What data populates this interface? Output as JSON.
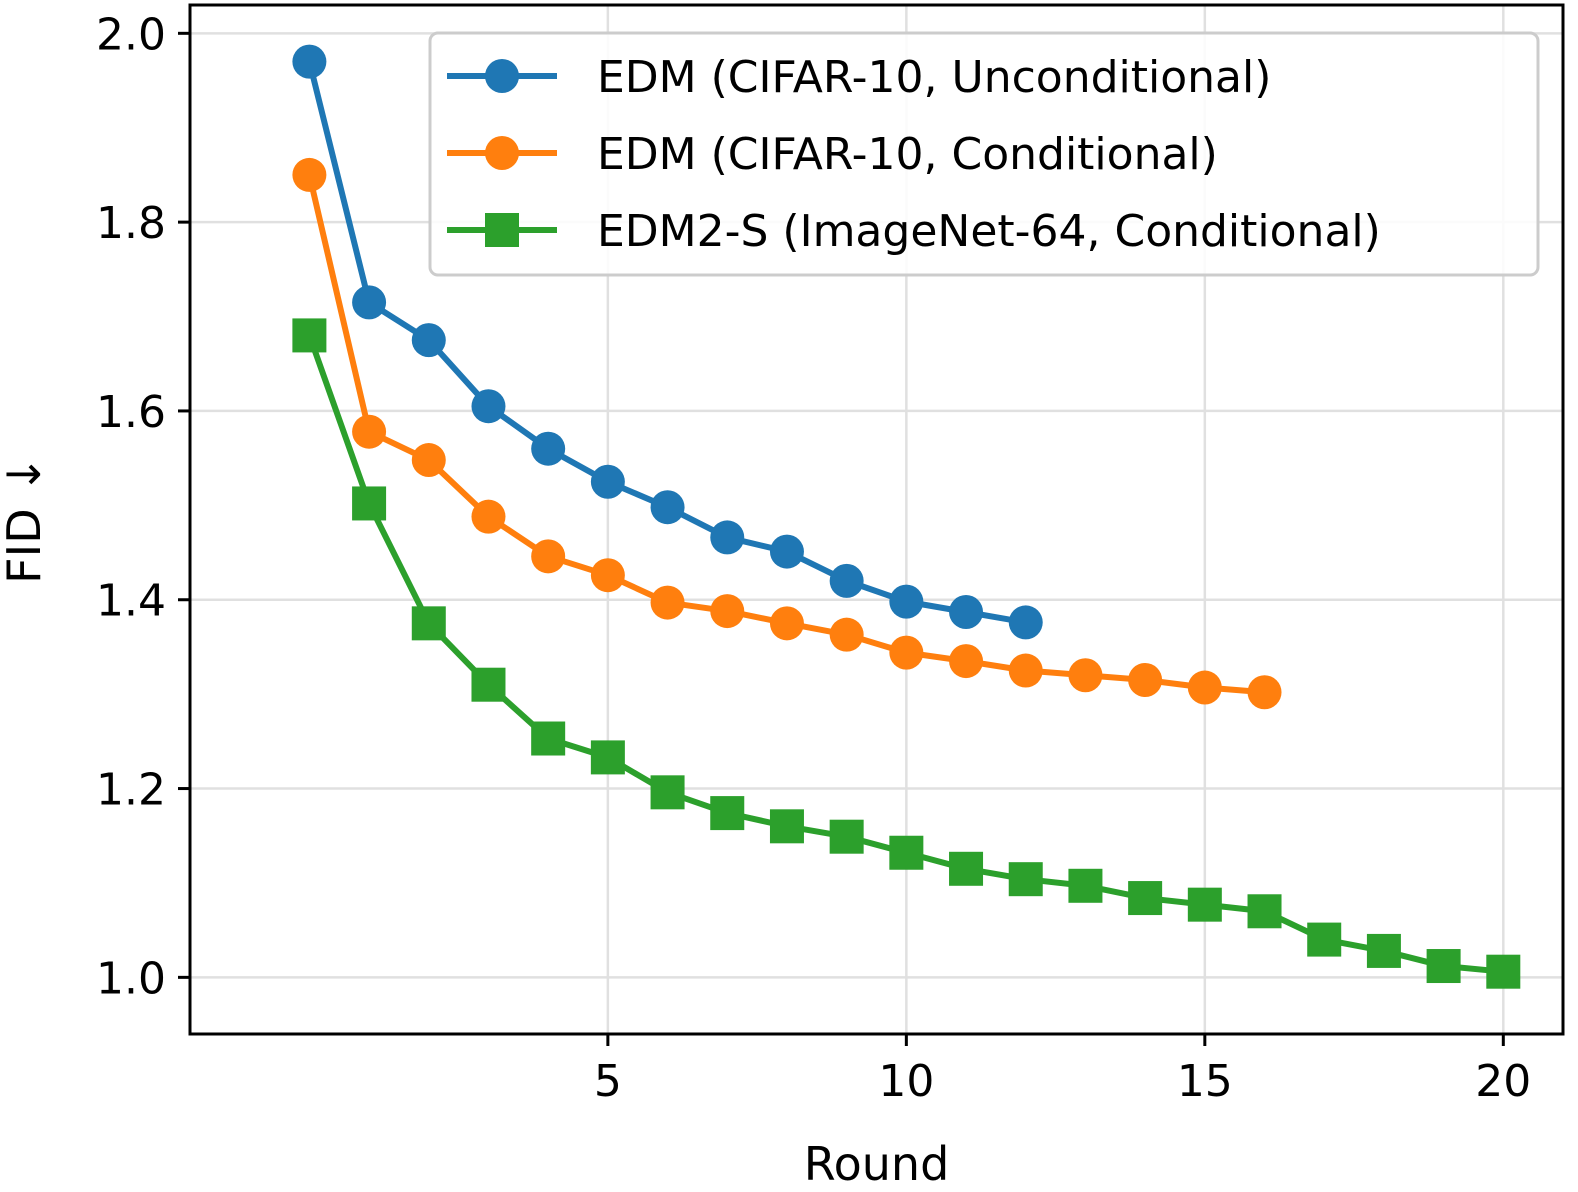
{
  "chart_data": {
    "type": "line",
    "title": "",
    "xlabel": "Round",
    "ylabel": "FID ↓",
    "xlim": [
      -2,
      21
    ],
    "ylim": [
      0.94,
      2.03
    ],
    "xticks": [
      5,
      10,
      15,
      20
    ],
    "yticks": [
      1.0,
      1.2,
      1.4,
      1.6,
      1.8,
      2.0
    ],
    "xtick_labels": [
      "5",
      "10",
      "15",
      "20"
    ],
    "ytick_labels": [
      "1.0",
      "1.2",
      "1.4",
      "1.6",
      "1.8",
      "2.0"
    ],
    "grid": true,
    "legend_position": "top-right",
    "series": [
      {
        "name": "EDM (CIFAR-10, Unconditional)",
        "color": "#1f77b4",
        "marker": "circle",
        "x": [
          0,
          1,
          2,
          3,
          4,
          5,
          6,
          7,
          8,
          9,
          10,
          11,
          12
        ],
        "values": [
          1.97,
          1.715,
          1.675,
          1.605,
          1.56,
          1.525,
          1.498,
          1.466,
          1.451,
          1.42,
          1.398,
          1.387,
          1.376
        ]
      },
      {
        "name": "EDM (CIFAR-10, Conditional)",
        "color": "#ff7f0e",
        "marker": "circle",
        "x": [
          0,
          1,
          2,
          3,
          4,
          5,
          6,
          7,
          8,
          9,
          10,
          11,
          12,
          13,
          14,
          15,
          16
        ],
        "values": [
          1.85,
          1.578,
          1.548,
          1.488,
          1.446,
          1.426,
          1.397,
          1.388,
          1.375,
          1.363,
          1.344,
          1.335,
          1.325,
          1.32,
          1.315,
          1.307,
          1.302
        ]
      },
      {
        "name": "EDM2-S (ImageNet-64, Conditional)",
        "color": "#2ca02c",
        "marker": "square",
        "x": [
          0,
          1,
          2,
          3,
          4,
          5,
          6,
          7,
          8,
          9,
          10,
          11,
          12,
          13,
          14,
          15,
          16,
          17,
          18,
          19,
          20
        ],
        "values": [
          1.68,
          1.502,
          1.375,
          1.31,
          1.253,
          1.233,
          1.196,
          1.174,
          1.16,
          1.149,
          1.132,
          1.115,
          1.104,
          1.097,
          1.084,
          1.077,
          1.07,
          1.04,
          1.028,
          1.012,
          1.006
        ]
      }
    ]
  }
}
